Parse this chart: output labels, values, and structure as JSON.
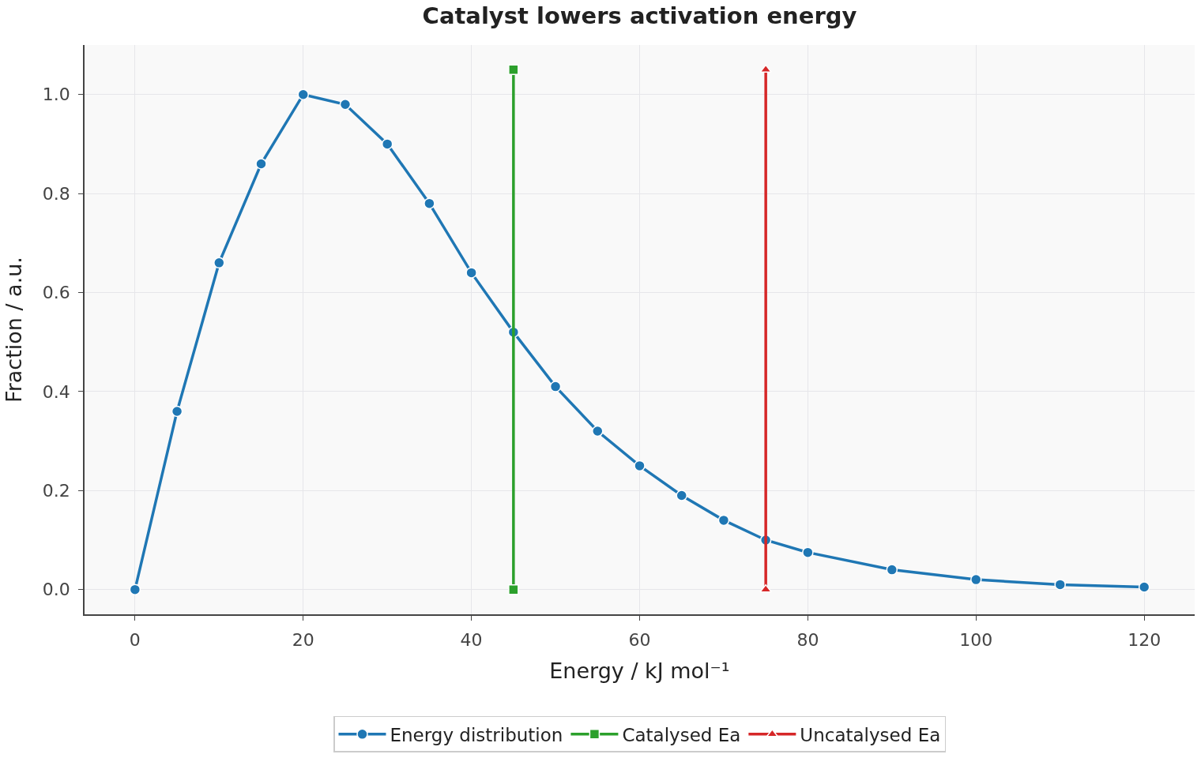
{
  "chart_data": {
    "type": "line",
    "title": "Catalyst lowers activation energy",
    "xlabel": "Energy / kJ mol⁻¹",
    "ylabel": "Fraction / a.u.",
    "series": [
      {
        "name": "Energy distribution",
        "color": "#1f77b4",
        "marker": "circle",
        "x": [
          0,
          5,
          10,
          15,
          20,
          25,
          30,
          35,
          40,
          45,
          50,
          55,
          60,
          65,
          70,
          75,
          80,
          90,
          100,
          110,
          120
        ],
        "values": [
          0,
          0.36,
          0.66,
          0.86,
          1.0,
          0.98,
          0.9,
          0.78,
          0.64,
          0.52,
          0.41,
          0.32,
          0.25,
          0.19,
          0.14,
          0.1,
          0.075,
          0.04,
          0.02,
          0.01,
          0.005
        ]
      },
      {
        "name": "Catalysed Ea",
        "color": "#2ca02c",
        "marker": "square",
        "x": [
          45,
          45
        ],
        "values": [
          0,
          1.05
        ]
      },
      {
        "name": "Uncatalysed Ea",
        "color": "#d62728",
        "marker": "triangle",
        "x": [
          75,
          75
        ],
        "values": [
          0,
          1.05
        ]
      }
    ],
    "xlim": [
      -6,
      126
    ],
    "xticks": [
      0,
      20,
      40,
      60,
      80,
      100,
      120
    ],
    "ylim": [
      -0.05,
      1.1
    ],
    "yticks": [
      {
        "value": 0,
        "label": "0.0"
      },
      {
        "value": 0.2,
        "label": "0.2"
      },
      {
        "value": 0.4,
        "label": "0.4"
      },
      {
        "value": 0.6,
        "label": "0.6"
      },
      {
        "value": 0.8,
        "label": "0.8"
      },
      {
        "value": 1.0,
        "label": "1.0"
      }
    ],
    "grid": true,
    "legend": "bottom",
    "line_style": "solid"
  }
}
